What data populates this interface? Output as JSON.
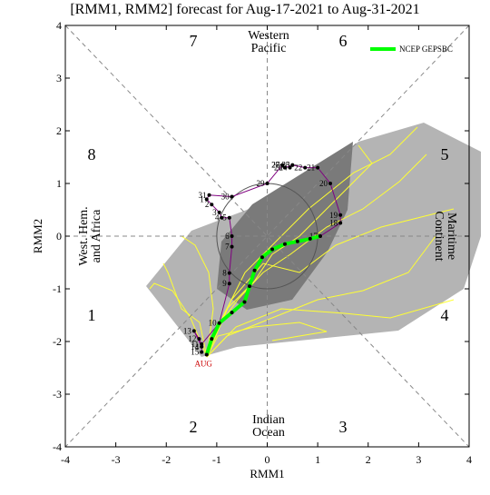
{
  "chart_data": {
    "type": "line",
    "title": "[RMM1, RMM2] forecast for Aug-17-2021 to Aug-31-2021",
    "xlabel": "RMM1",
    "ylabel": "RMM2",
    "xlim": [
      -4,
      4
    ],
    "ylim": [
      -4,
      4
    ],
    "xticks": [
      -4,
      -3,
      -2,
      -1,
      0,
      1,
      2,
      3,
      4
    ],
    "yticks": [
      -4,
      -3,
      -2,
      -1,
      0,
      1,
      2,
      3,
      4
    ],
    "phase_labels": [
      "1",
      "2",
      "3",
      "4",
      "5",
      "6",
      "7",
      "8"
    ],
    "regions": {
      "top": [
        "Western",
        "Pacific"
      ],
      "bottom": [
        "Indian",
        "Ocean"
      ],
      "left": [
        "West. Hem.",
        "and Africa"
      ],
      "right": [
        "Maritime",
        "Continent"
      ]
    },
    "start_label": "AUG",
    "observed": {
      "color": "#800080",
      "x": [
        1.05,
        1.45,
        1.45,
        1.25,
        1.0,
        0.75,
        0.5,
        0.45,
        0.5,
        0.35,
        0.3,
        0.3,
        0.0,
        -0.7,
        -1.15,
        -1.2,
        -1.1,
        -0.95,
        -0.9,
        -0.75,
        -0.7,
        -0.7,
        -0.75,
        -0.75,
        -0.95,
        -1.3,
        -1.35,
        -1.45,
        -1.3,
        -1.3
      ],
      "y": [
        0.0,
        0.25,
        0.4,
        1.0,
        1.3,
        1.3,
        1.35,
        1.3,
        1.35,
        1.3,
        1.35,
        1.35,
        1.0,
        0.75,
        0.78,
        0.7,
        0.6,
        0.45,
        0.35,
        0.35,
        0.0,
        -0.2,
        -0.7,
        -0.9,
        -1.65,
        -2.05,
        -1.95,
        -1.8,
        -2.1,
        -2.2
      ],
      "labels": [
        "17",
        "18",
        "19",
        "20",
        "21",
        "22",
        "23",
        "24",
        "25",
        "26",
        "27",
        "28",
        "29",
        "30",
        "31",
        "1",
        "2",
        "3",
        "4",
        "5",
        "6",
        "7",
        "8",
        "9",
        "10",
        "11",
        "12",
        "13",
        "14",
        "15"
      ]
    },
    "series": [
      {
        "name": "NCEP GEPSBC",
        "color": "#00ff00",
        "x": [
          -1.2,
          -1.1,
          -0.95,
          -0.7,
          -0.45,
          -0.35,
          -0.25,
          -0.1,
          0.1,
          0.35,
          0.6,
          0.85,
          1.05
        ],
        "y": [
          -2.25,
          -1.95,
          -1.65,
          -1.45,
          -1.25,
          -0.95,
          -0.65,
          -0.4,
          -0.25,
          -0.15,
          -0.1,
          -0.05,
          0.0
        ]
      }
    ]
  }
}
